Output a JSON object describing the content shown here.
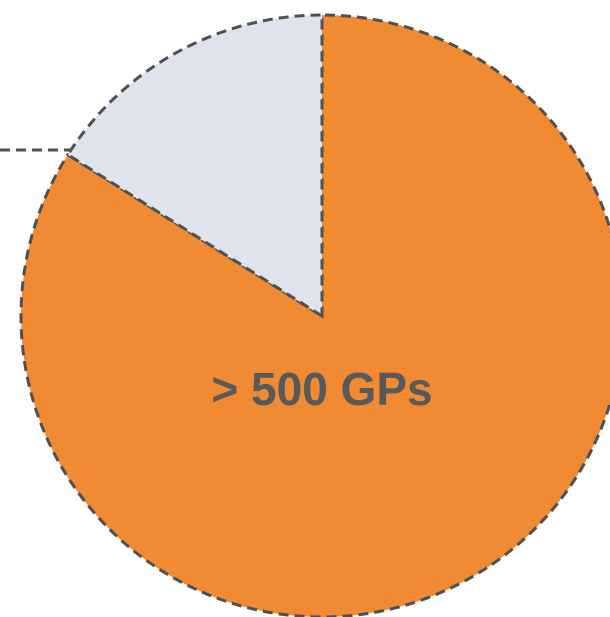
{
  "chart_data": {
    "type": "pie",
    "categories": [
      "> 500 GPs",
      null
    ],
    "values": [
      84,
      16
    ],
    "colors": [
      "#f08a33",
      "#dee3ee"
    ]
  }
}
